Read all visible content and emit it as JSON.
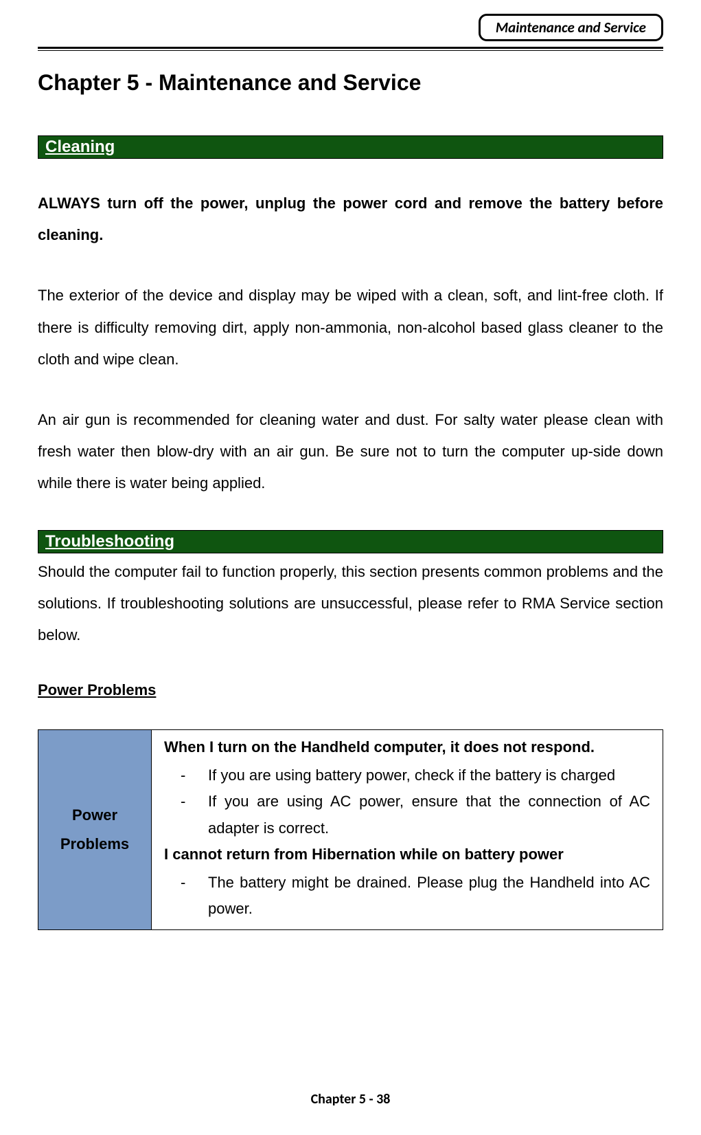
{
  "header_badge": "Maintenance and Service",
  "chapter_title": "Chapter 5  - Maintenance and Service",
  "sections": {
    "cleaning": {
      "banner": " Cleaning",
      "p1": "ALWAYS turn off the power, unplug the power cord and remove the battery before cleaning.",
      "p2": "The exterior of the device and display may be wiped with a clean, soft, and lint-free cloth. If there is difficulty removing dirt, apply non-ammonia, non-alcohol based glass cleaner to the cloth and wipe clean.",
      "p3": "An air gun is recommended for cleaning water and dust. For salty water please clean with fresh water then blow-dry with an air gun. Be sure not to turn the computer up-side down while there is water being applied."
    },
    "troubleshooting": {
      "banner": " Troubleshooting",
      "intro": "Should the computer fail to function properly, this section presents common problems and the solutions. If troubleshooting solutions are unsuccessful, please refer to RMA Service section below.",
      "power_heading": "Power Problems",
      "table": {
        "left_line1": "Power",
        "left_line2": "Problems",
        "left_bg": "#7c9cc8",
        "issue1": "When I turn on the Handheld computer, it does not respond.",
        "sol1a": "If you are using battery power, check if the battery is charged",
        "sol1b": "If you are using AC power, ensure that the connection of AC adapter is correct.",
        "issue2": "I cannot return from Hibernation while on battery power",
        "sol2a": "The battery might be drained. Please plug the Handheld into AC power."
      }
    }
  },
  "footer": "Chapter 5 - 38",
  "colors": {
    "banner_bg": "#0f5510",
    "banner_fg": "#ffffff",
    "table_header_bg": "#7c9cc8",
    "page_bg": "#ffffff",
    "text": "#000000"
  },
  "typography": {
    "body_fontsize_pt": 16,
    "title_fontsize_pt": 24,
    "banner_fontsize_pt": 18,
    "font_family": "Arial"
  }
}
